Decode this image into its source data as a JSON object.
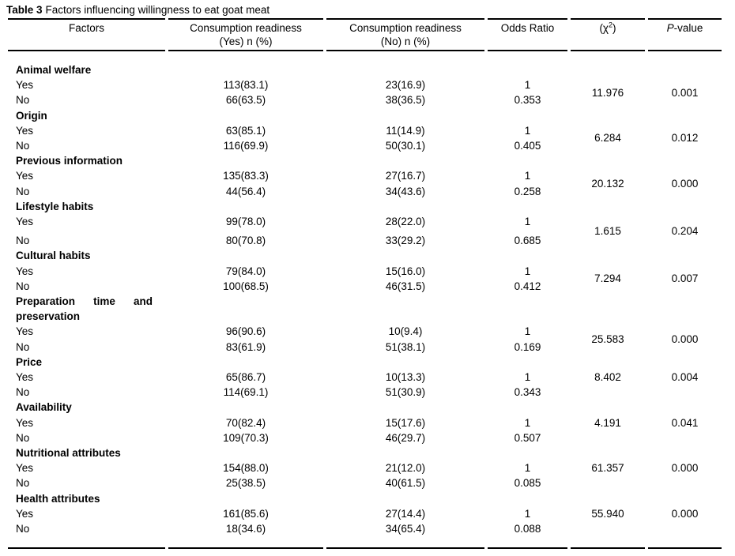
{
  "title": {
    "label": "Table 3",
    "text": "Factors influencing willingness to eat goat meat"
  },
  "table": {
    "headers": {
      "factors": "Factors",
      "consumption_yes_line1": "Consumption readiness",
      "consumption_yes_line2": "(Yes) n (%)",
      "consumption_no_line1": "Consumption readiness",
      "consumption_no_line2": "(No) n (%)",
      "odds_ratio": "Odds Ratio",
      "chi_open": "(χ",
      "chi_sup": "2",
      "chi_close": ")",
      "p_italic": "P",
      "p_rest": "-value"
    },
    "groups": [
      {
        "factor": "Animal welfare",
        "yes": {
          "label": "Yes",
          "ready_yes": "113(83.1)",
          "ready_no": "23(16.9)",
          "odds": "1"
        },
        "no": {
          "label": "No",
          "ready_yes": "66(63.5)",
          "ready_no": "38(36.5)",
          "odds": "0.353"
        },
        "chi_square": "11.976",
        "p_value": "0.001",
        "stat_align": "middle"
      },
      {
        "factor": "Origin",
        "yes": {
          "label": "Yes",
          "ready_yes": "63(85.1)",
          "ready_no": "11(14.9)",
          "odds": "1"
        },
        "no": {
          "label": "No",
          "ready_yes": "116(69.9)",
          "ready_no": "50(30.1)",
          "odds": "0.405"
        },
        "chi_square": "6.284",
        "p_value": "0.012",
        "stat_align": "middle"
      },
      {
        "factor": "Previous information",
        "yes": {
          "label": "Yes",
          "ready_yes": "135(83.3)",
          "ready_no": "27(16.7)",
          "odds": "1"
        },
        "no": {
          "label": "No",
          "ready_yes": "44(56.4)",
          "ready_no": "34(43.6)",
          "odds": "0.258"
        },
        "chi_square": "20.132",
        "p_value": "0.000",
        "stat_align": "middle"
      },
      {
        "factor": "Lifestyle habits",
        "yes": {
          "label": "Yes",
          "ready_yes": "99(78.0)",
          "ready_no": "28(22.0)",
          "odds": "1"
        },
        "no": {
          "label": "No",
          "ready_yes": "80(70.8)",
          "ready_no": "33(29.2)",
          "odds": "0.685"
        },
        "chi_square": "1.615",
        "p_value": "0.204",
        "stat_align": "middle",
        "extra_gap_before_no": true
      },
      {
        "factor": "Cultural habits",
        "yes": {
          "label": "Yes",
          "ready_yes": "79(84.0)",
          "ready_no": "15(16.0)",
          "odds": "1"
        },
        "no": {
          "label": "No",
          "ready_yes": "100(68.5)",
          "ready_no": "46(31.5)",
          "odds": "0.412"
        },
        "chi_square": "7.294",
        "p_value": "0.007",
        "stat_align": "middle"
      },
      {
        "factor": "Preparation time and preservation",
        "two_line": true,
        "yes": {
          "label": "Yes",
          "ready_yes": "96(90.6)",
          "ready_no": "10(9.4)",
          "odds": "1"
        },
        "no": {
          "label": "No",
          "ready_yes": "83(61.9)",
          "ready_no": "51(38.1)",
          "odds": "0.169"
        },
        "chi_square": "25.583",
        "p_value": "0.000",
        "stat_align": "middle"
      },
      {
        "factor": "Price",
        "yes": {
          "label": "Yes",
          "ready_yes": "65(86.7)",
          "ready_no": "10(13.3)",
          "odds": "1"
        },
        "no": {
          "label": "No",
          "ready_yes": "114(69.1)",
          "ready_no": "51(30.9)",
          "odds": "0.343"
        },
        "chi_square": "8.402",
        "p_value": "0.004",
        "stat_align": "top"
      },
      {
        "factor": "Availability",
        "yes": {
          "label": "Yes",
          "ready_yes": "70(82.4)",
          "ready_no": "15(17.6)",
          "odds": "1"
        },
        "no": {
          "label": "No",
          "ready_yes": "109(70.3)",
          "ready_no": "46(29.7)",
          "odds": "0.507"
        },
        "chi_square": "4.191",
        "p_value": "0.041",
        "stat_align": "top"
      },
      {
        "factor": "Nutritional attributes",
        "yes": {
          "label": "Yes",
          "ready_yes": "154(88.0)",
          "ready_no": "21(12.0)",
          "odds": "1"
        },
        "no": {
          "label": "No",
          "ready_yes": "25(38.5)",
          "ready_no": "40(61.5)",
          "odds": "0.085"
        },
        "chi_square": "61.357",
        "p_value": "0.000",
        "stat_align": "top"
      },
      {
        "factor": "Health attributes",
        "yes": {
          "label": "Yes",
          "ready_yes": "161(85.6)",
          "ready_no": "27(14.4)",
          "odds": "1"
        },
        "no": {
          "label": "No",
          "ready_yes": "18(34.6)",
          "ready_no": "34(65.4)",
          "odds": "0.088"
        },
        "chi_square": "55.940",
        "p_value": "0.000",
        "stat_align": "top"
      }
    ]
  }
}
